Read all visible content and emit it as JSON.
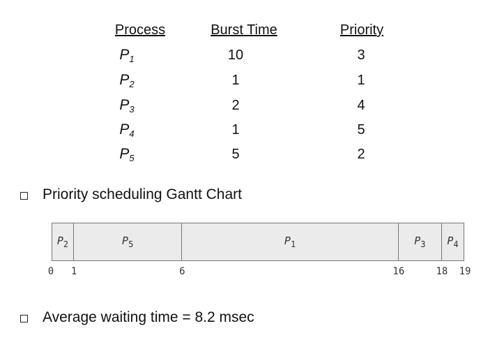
{
  "table": {
    "headers": [
      "Process",
      "Burst Time",
      "Priority"
    ],
    "rows": [
      {
        "p": "P",
        "sub": "1",
        "burst": "10",
        "priority": "3"
      },
      {
        "p": "P",
        "sub": "2",
        "burst": "1",
        "priority": "1"
      },
      {
        "p": "P",
        "sub": "3",
        "burst": "2",
        "priority": "4"
      },
      {
        "p": "P",
        "sub": "4",
        "burst": "1",
        "priority": "5"
      },
      {
        "p": "P",
        "sub": "5",
        "burst": "5",
        "priority": "2"
      }
    ]
  },
  "bullets": [
    {
      "text": "Priority scheduling Gantt Chart"
    },
    {
      "text": "Average waiting time = 8.2 msec"
    }
  ],
  "gantt": {
    "total": 19,
    "segments": [
      {
        "p": "P",
        "sub": "2",
        "start": 0,
        "end": 1
      },
      {
        "p": "P",
        "sub": "5",
        "start": 1,
        "end": 6
      },
      {
        "p": "P",
        "sub": "1",
        "start": 6,
        "end": 16
      },
      {
        "p": "P",
        "sub": "3",
        "start": 16,
        "end": 18
      },
      {
        "p": "P",
        "sub": "4",
        "start": 18,
        "end": 19
      }
    ],
    "ticks": [
      "0",
      "1",
      "6",
      "16",
      "18",
      "19"
    ],
    "tick_values": [
      0,
      1,
      6,
      16,
      18,
      19
    ]
  }
}
